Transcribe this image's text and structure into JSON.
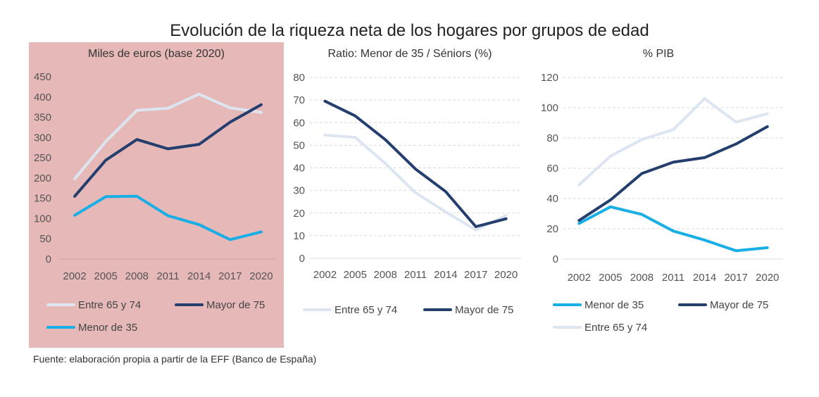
{
  "title": "Evolución de la riqueza neta de los hogares por grupos de edad",
  "source": "Fuente: elaboración propia a partir de la EFF (Banco de España)",
  "colors": {
    "entre_65_74": "#dde6f0",
    "mayor_75": "#243f6e",
    "menor_35": "#18aee6",
    "panel1_bg": "#e6b8b8",
    "grid": "#d9d9d9"
  },
  "chart_data": [
    {
      "type": "line",
      "title": "Miles de euros (base 2020)",
      "x": [
        "2002",
        "2005",
        "2008",
        "2011",
        "2014",
        "2017",
        "2020"
      ],
      "ylim": [
        0,
        450
      ],
      "yticks": [
        "0",
        "50",
        "100",
        "150",
        "200",
        "250",
        "300",
        "350",
        "400",
        "450"
      ],
      "grid": false,
      "series": [
        {
          "name": "Entre 65 y 74",
          "color": "#dde6f0",
          "values": [
            198,
            290,
            367,
            372,
            407,
            373,
            362
          ]
        },
        {
          "name": "Mayor de 75",
          "color": "#243f6e",
          "values": [
            155,
            244,
            295,
            272,
            283,
            338,
            381
          ]
        },
        {
          "name": "Menor de 35",
          "color": "#18aee6",
          "values": [
            108,
            154,
            155,
            107,
            85,
            48,
            67
          ]
        }
      ],
      "legend_rows": [
        [
          0,
          1
        ],
        [
          2
        ]
      ]
    },
    {
      "type": "line",
      "title": "Ratio: Menor de 35 / Séniors (%)",
      "x": [
        "2002",
        "2005",
        "2008",
        "2011",
        "2014",
        "2017",
        "2020"
      ],
      "ylim": [
        0,
        80
      ],
      "yticks": [
        "0",
        "10",
        "20",
        "30",
        "40",
        "50",
        "60",
        "70",
        "80"
      ],
      "grid": true,
      "series": [
        {
          "name": "Entre 65 y 74",
          "color": "#dde6f0",
          "values": [
            54.5,
            53.5,
            42,
            29,
            20.5,
            12.5,
            19
          ]
        },
        {
          "name": "Mayor de 75",
          "color": "#243f6e",
          "values": [
            69.5,
            63,
            52.5,
            39.5,
            29.5,
            14,
            17.5
          ]
        }
      ],
      "legend_rows": [
        [
          0,
          1
        ]
      ]
    },
    {
      "type": "line",
      "title": "% PIB",
      "x": [
        "2002",
        "2005",
        "2008",
        "2011",
        "2014",
        "2017",
        "2020"
      ],
      "ylim": [
        0,
        120
      ],
      "yticks": [
        "0",
        "20",
        "40",
        "60",
        "80",
        "100",
        "120"
      ],
      "grid": true,
      "series": [
        {
          "name": "Menor de 35",
          "color": "#18aee6",
          "values": [
            23.5,
            34.5,
            29.5,
            18.5,
            12.5,
            5.5,
            7.5
          ]
        },
        {
          "name": "Mayor de 75",
          "color": "#243f6e",
          "values": [
            25.5,
            39,
            56.5,
            64,
            67,
            76,
            87.5
          ]
        },
        {
          "name": "Entre 65 y 74",
          "color": "#dde6f0",
          "values": [
            49,
            68,
            79,
            85.5,
            106,
            90.5,
            96
          ]
        }
      ],
      "legend_rows": [
        [
          0,
          1
        ],
        [
          2
        ]
      ]
    }
  ]
}
